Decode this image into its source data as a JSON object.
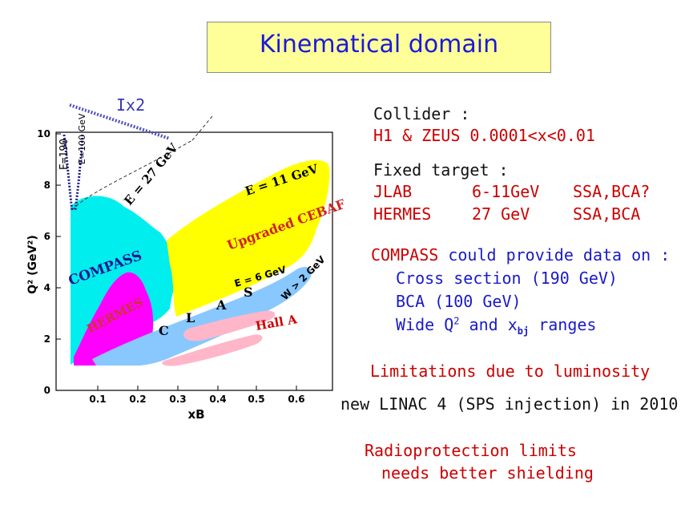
{
  "title": "Kinematical domain",
  "plot": {
    "y_axis_title": "Q² (GeV²)",
    "x_axis_title": "xB",
    "y_ticks": [
      "0",
      "2",
      "4",
      "6",
      "8",
      "10"
    ],
    "x_ticks": [
      "0.1",
      "0.2",
      "0.3",
      "0.4",
      "0.5",
      "0.6"
    ],
    "annotations": {
      "ix2": "Ix2",
      "e190": "E=190",
      "e100": "E=100 GeV",
      "e27": "E = 27 GeV",
      "e11": "E = 11 GeV",
      "upgraded_cebaf": "Upgraded CEBAF",
      "compass": "COMPASS",
      "hermes": "HERMES",
      "e6": "E = 6 GeV",
      "w2": "W > 2 GeV",
      "clas": [
        "C",
        "L",
        "A",
        "S"
      ],
      "hall_a": "Hall A"
    },
    "colors": {
      "compass_region": "#00eeee",
      "cebaf_region": "#ffff00",
      "hermes_region": "#ff00ff",
      "clas_region": "#88c8ff",
      "hall_a_region": "#ffb6c8",
      "ix2_line": "#5050c0"
    }
  },
  "right_text": {
    "collider_label": "Collider :",
    "collider_detail": "H1 & ZEUS  0.0001<x<0.01",
    "fixed_label": "Fixed target :",
    "jlab": "JLAB",
    "jlab_energy": "6-11GeV",
    "jlab_obs": "SSA,BCA?",
    "hermes": "HERMES",
    "hermes_energy": "27 GeV",
    "hermes_obs": "SSA,BCA",
    "compass_word": "COMPASS",
    "compass_rest": "could provide data on :",
    "item1": "Cross section (190 GeV)",
    "item2": "BCA (100 GeV)",
    "item3_a": "Wide Q",
    "item3_sup": "2",
    "item3_b": " and x",
    "item3_sub": "bj",
    "item3_c": " ranges",
    "limitations": "Limitations due to luminosity",
    "linac": "new LINAC 4 (SPS injection) in 2010",
    "radio1": "Radioprotection limits",
    "radio2": "needs better shielding"
  }
}
